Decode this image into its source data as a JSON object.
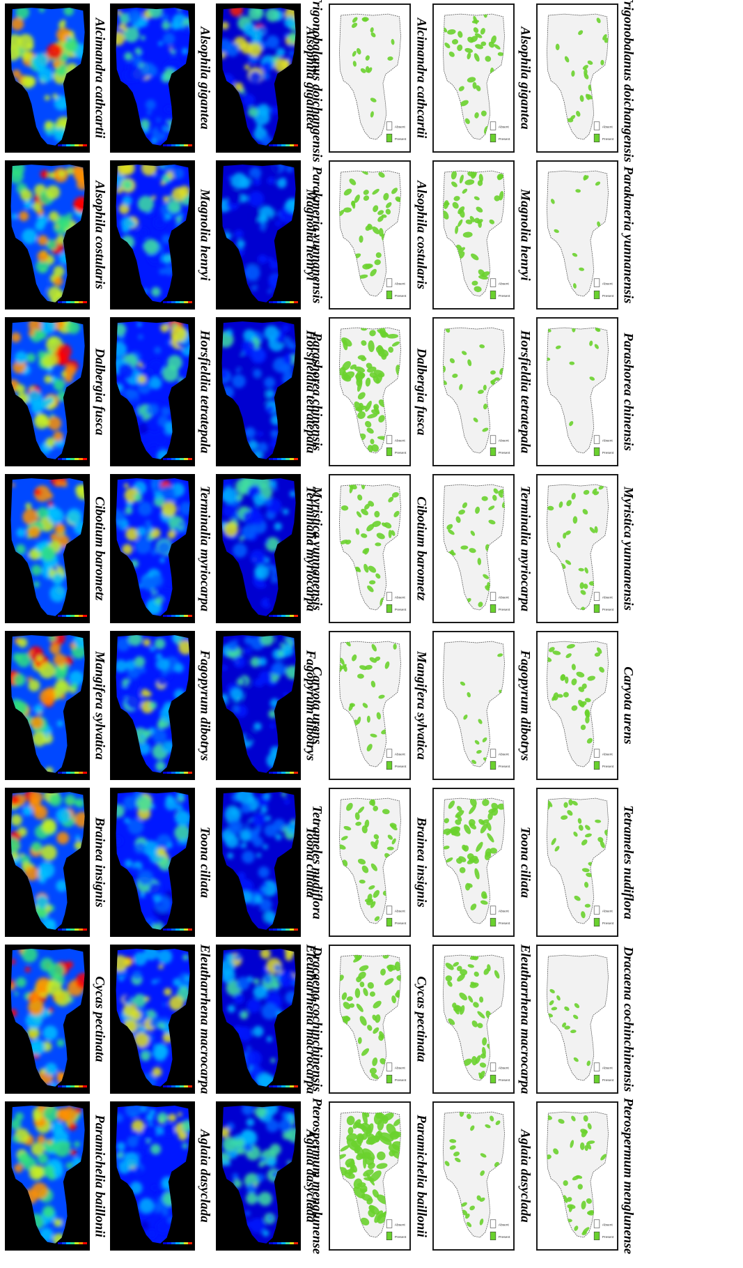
{
  "left_panel": {
    "colormaps": {
      "heat": [
        "#0000c8",
        "#0048ff",
        "#00c0ff",
        "#30e080",
        "#c8f020",
        "#ff9000",
        "#ff0000"
      ],
      "cool": [
        "#0000d0",
        "#0018ff",
        "#0060ff",
        "#00b0ff",
        "#40e0a0",
        "#e0e020",
        "#ff2000"
      ]
    },
    "rows": [
      [
        "Alcimandra cathcartii",
        "Alsophila gigantea"
      ],
      [
        "Alsophila costularis",
        "Magnolia henryi"
      ],
      [
        "Dalbergia fusca",
        "Horsfieldia tetratepala"
      ],
      [
        "Cibotium barometz",
        "Terminalia myriocarpa"
      ],
      [
        "Mangifera sylvatica",
        "Fagopyrum dibotrys"
      ],
      [
        "Brainea insignis",
        "Toona ciliata"
      ],
      [
        "Cycas pectinata",
        "Eleutharrhena macrocarpa"
      ],
      [
        "Paramichelia baillonii",
        "Aglaia dasyclada"
      ]
    ],
    "suitability_levels": [
      [
        0.55,
        0.35,
        0.45
      ],
      [
        0.6,
        0.4,
        0.05
      ],
      [
        0.6,
        0.4,
        0.1
      ],
      [
        0.5,
        0.45,
        0.3
      ],
      [
        0.55,
        0.4,
        0.2
      ],
      [
        0.55,
        0.35,
        0.2
      ],
      [
        0.7,
        0.5,
        0.35
      ],
      [
        0.55,
        0.4,
        0.4
      ]
    ]
  },
  "right_panel": {
    "map_fill": "#f2f2f2",
    "presence_color": "#6ad12e",
    "legend_entries": [
      "Absent",
      "Present"
    ],
    "rows": [
      [
        "Trigonobalanus doichangensis",
        "Alcimandra cathcartii",
        "Alsophila gigantea",
        "Trigonobalanus doichangensis"
      ],
      [
        "Parakmeria yunnanensis",
        "Alsophila costularis",
        "Magnolia henryi",
        "Parakmeria yunnanensis"
      ],
      [
        "Parashorea chinensis",
        "Dalbergia fusca",
        "Horsfieldia tetratepala",
        "Parashorea chinensis"
      ],
      [
        "Myristica yunnanensis",
        "Cibotium barometz",
        "Terminalia myriocarpa",
        "Myristica yunnanensis"
      ],
      [
        "Caryota urens",
        "Mangifera sylvatica",
        "Fagopyrum dibotrys",
        "Caryota urens"
      ],
      [
        "Tetrameles nudiflora",
        "Brainea insignis",
        "Toona ciliata",
        "Tetrameles nudiflora"
      ],
      [
        "Dracaena cochinchinensis",
        "Cycas pectinata",
        "Eleutharrhena macrocarpa",
        "Dracaena cochinchinensis"
      ],
      [
        "Pterospermum menglunense",
        "Paramichelia baillonii",
        "Aglaia dasyclada",
        "Pterospermum menglunense"
      ]
    ],
    "presence_coverage": [
      [
        0.1,
        0.3,
        0.12
      ],
      [
        0.3,
        0.35,
        0.02
      ],
      [
        0.55,
        0.12,
        0.03
      ],
      [
        0.3,
        0.2,
        0.18
      ],
      [
        0.2,
        0.03,
        0.25
      ],
      [
        0.3,
        0.45,
        0.2
      ],
      [
        0.4,
        0.35,
        0.05
      ],
      [
        0.75,
        0.15,
        0.25
      ]
    ]
  }
}
